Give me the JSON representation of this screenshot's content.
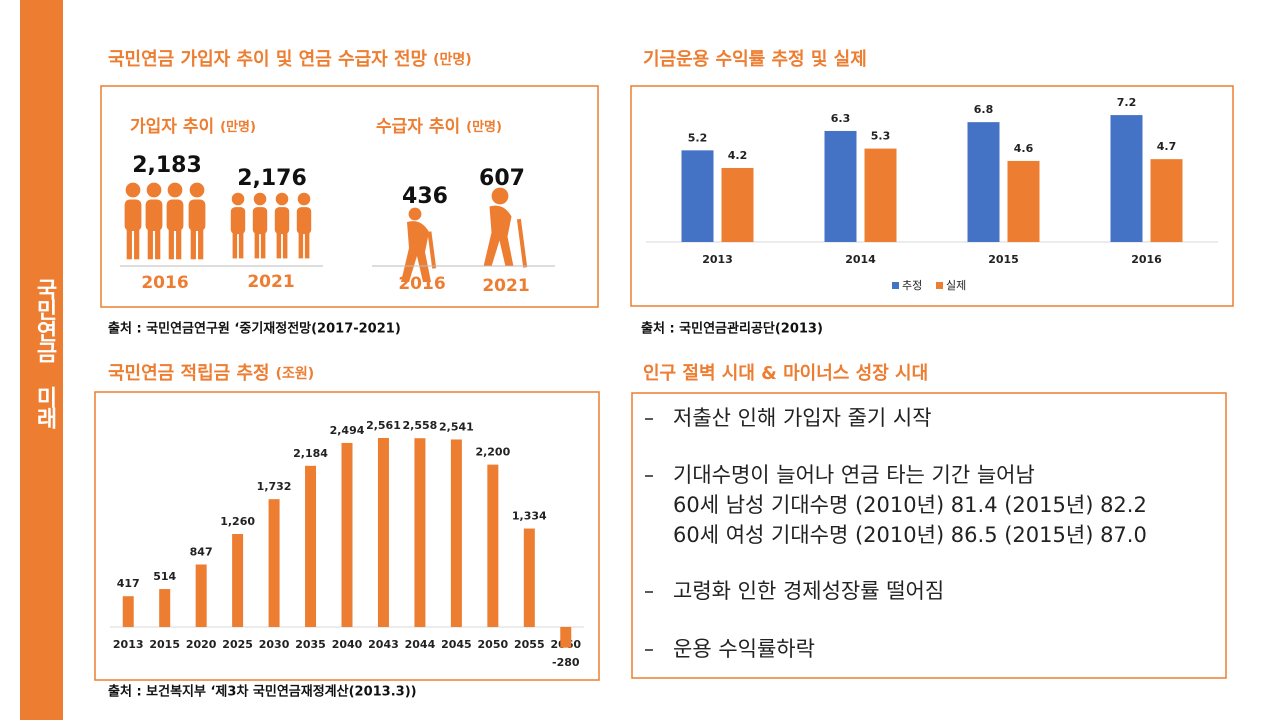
{
  "sidebar": "국민연금 미래",
  "infographic": {
    "title": "국민연금 가입자 추이 및 연금 수급자 전망",
    "subtitle": "(만명)",
    "groups": [
      {
        "title": "가입자 추이",
        "subtitle": "(만명)",
        "items": [
          {
            "value": "2,183",
            "year": "2016"
          },
          {
            "value": "2,176",
            "year": "2021"
          }
        ]
      },
      {
        "title": "수급자 추이",
        "subtitle": "(만명)",
        "items": [
          {
            "value": "436",
            "year": "2016"
          },
          {
            "value": "607",
            "year": "2021"
          }
        ]
      }
    ],
    "source": "출처 : 국민연금연구원 ‘중기재정전망(2017-2021)"
  },
  "chart_data": [
    {
      "type": "bar",
      "title": "기금운용 수익률 추정 및 실제",
      "categories": [
        "2013",
        "2014",
        "2015",
        "2016"
      ],
      "series": [
        {
          "name": "추정",
          "color": "#4472c4",
          "values": [
            5.2,
            6.3,
            6.8,
            7.2
          ]
        },
        {
          "name": "실제",
          "color": "#ed7d31",
          "values": [
            4.2,
            5.3,
            4.6,
            4.7
          ]
        }
      ],
      "ylim": [
        0,
        8
      ],
      "legend": "bottom",
      "source": "출처 : 국민연금관리공단(2013)"
    },
    {
      "type": "bar",
      "title": "국민연금 적립금 추정",
      "subtitle": "(조원)",
      "categories": [
        "2013",
        "2015",
        "2020",
        "2025",
        "2030",
        "2035",
        "2040",
        "2043",
        "2044",
        "2045",
        "2050",
        "2055",
        "2060"
      ],
      "values": [
        417,
        514,
        847,
        1260,
        1732,
        2184,
        2494,
        2561,
        2558,
        2541,
        2200,
        1334,
        -280
      ],
      "value_labels": [
        "417",
        "514",
        "847",
        "1,260",
        "1,732",
        "2,184",
        "2,494",
        "2,561",
        "2,558",
        "2,541",
        "2,200",
        "1,334",
        "-280"
      ],
      "color": "#ed7d31",
      "ylim": [
        -400,
        3000
      ],
      "source": "출처 : 보건복지부 ‘제3차 국민연금재정계산(2013.3))"
    }
  ],
  "notes": {
    "title": "인구 절벽 시대 & 마이너스 성장 시대",
    "bullets": [
      [
        "저출산 인해 가입자 줄기 시작"
      ],
      [
        "기대수명이 늘어나 연금 타는 기간 늘어남",
        "60세 남성 기대수명 (2010년) 81.4 (2015년) 82.2",
        "60세 여성 기대수명 (2010년) 86.5 (2015년) 87.0"
      ],
      [
        "고령화 인한 경제성장률 떨어짐"
      ],
      [
        "운용 수익률하락"
      ]
    ]
  }
}
